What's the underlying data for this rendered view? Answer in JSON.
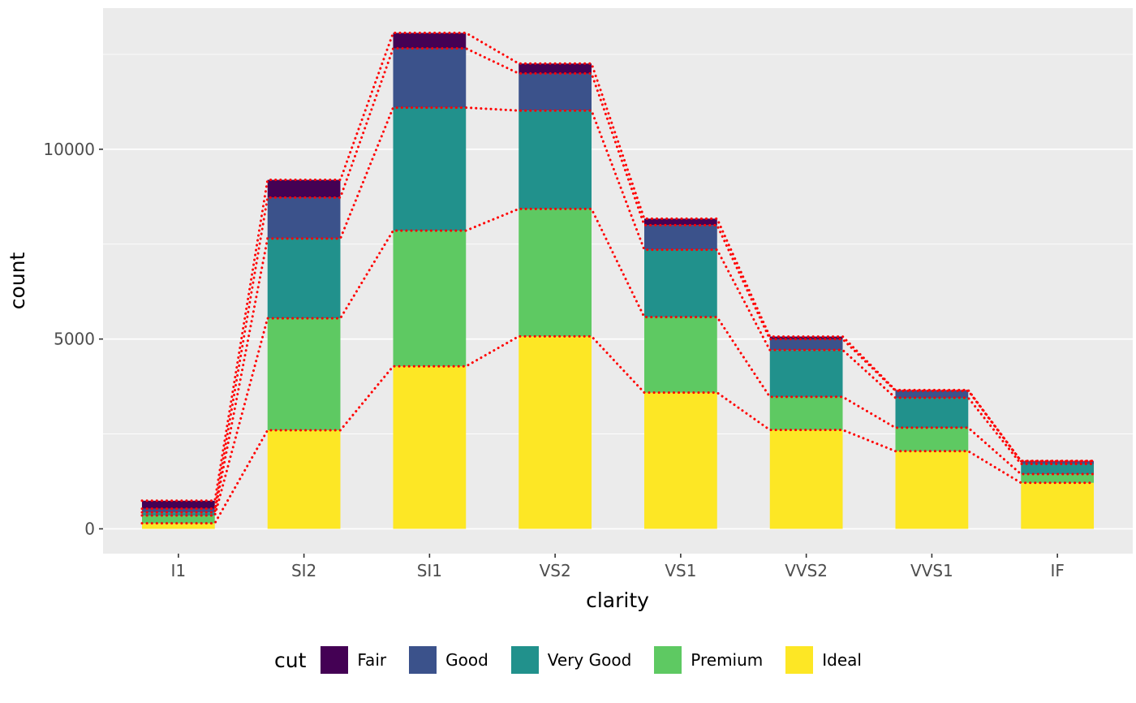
{
  "chart_data": {
    "type": "bar",
    "stacked": true,
    "title": "",
    "xlabel": "clarity",
    "ylabel": "count",
    "categories": [
      "I1",
      "SI2",
      "SI1",
      "VS2",
      "VS1",
      "VVS2",
      "VVS1",
      "IF"
    ],
    "series": [
      {
        "name": "Ideal",
        "color": "#FDE725",
        "values": [
          146,
          2598,
          4282,
          5071,
          3589,
          2606,
          2047,
          1212
        ]
      },
      {
        "name": "Premium",
        "color": "#5EC962",
        "values": [
          205,
          2949,
          3575,
          3357,
          1989,
          870,
          616,
          230
        ]
      },
      {
        "name": "Very Good",
        "color": "#21918C",
        "values": [
          84,
          2100,
          3240,
          2591,
          1775,
          1235,
          789,
          268
        ]
      },
      {
        "name": "Good",
        "color": "#3B528B",
        "values": [
          96,
          1081,
          1560,
          978,
          648,
          286,
          186,
          71
        ]
      },
      {
        "name": "Fair",
        "color": "#440154",
        "values": [
          210,
          466,
          408,
          261,
          170,
          69,
          17,
          9
        ]
      }
    ],
    "totals": [
      741,
      9194,
      13065,
      12258,
      8171,
      5066,
      3655,
      1790
    ],
    "y_ticks": [
      0,
      5000,
      10000
    ],
    "y_tick_labels": [
      "0",
      "5000",
      "10000"
    ],
    "y_minor_ticks": [
      2500,
      7500,
      12500
    ],
    "ylim": [
      0,
      13065
    ],
    "legend": {
      "title": "cut",
      "position": "bottom",
      "order": [
        "Fair",
        "Good",
        "Very Good",
        "Premium",
        "Ideal"
      ]
    },
    "connector_lines": {
      "color": "#FF0000",
      "style": "dotted",
      "description": "red dotted lines tracing each cumulative stack boundary across bars"
    },
    "style": {
      "panel_background": "#EBEBEB",
      "grid_color": "#FFFFFF",
      "axis_text_color": "#4D4D4D",
      "tick_color": "#333333",
      "figure_background": "#FFFFFF"
    }
  }
}
